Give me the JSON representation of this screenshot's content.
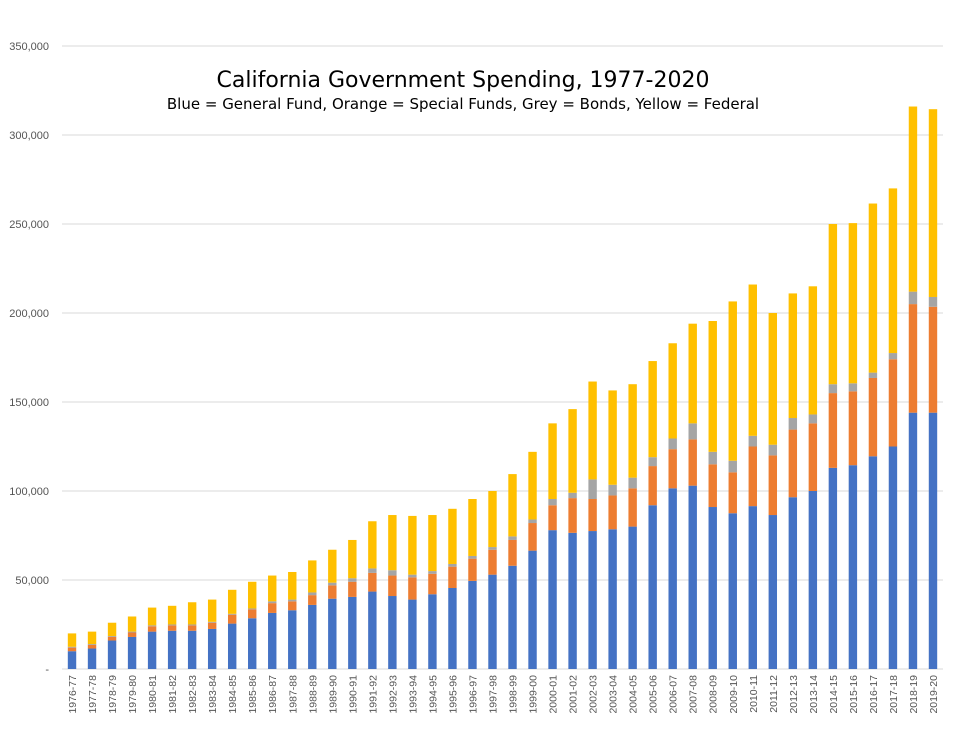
{
  "chart_data": {
    "type": "bar",
    "stacked": true,
    "title": "California Government Spending, 1977-2020",
    "subtitle": "Blue = General Fund, Orange = Special Funds, Grey = Bonds, Yellow = Federal",
    "xlabel": "",
    "ylabel": "",
    "ylim": [
      0,
      350000
    ],
    "grid": true,
    "legend": "none",
    "y_ticks": [
      "-",
      "50,000",
      "100,000",
      "150,000",
      "200,000",
      "250,000",
      "300,000",
      "350,000"
    ],
    "y_tick_values": [
      0,
      50000,
      100000,
      150000,
      200000,
      250000,
      300000,
      350000
    ],
    "categories": [
      "1976-77",
      "1977-78",
      "1978-79",
      "1979-80",
      "1980-81",
      "1981-82",
      "1982-83",
      "1983-84",
      "1984-85",
      "1985-86",
      "1986-87",
      "1987-88",
      "1988-89",
      "1989-90",
      "1990-91",
      "1991-92",
      "1992-93",
      "1993-94",
      "1994-95",
      "1995-96",
      "1996-97",
      "1997-98",
      "1998-99",
      "1999-00",
      "2000-01",
      "2001-02",
      "2002-03",
      "2003-04",
      "2004-05",
      "2005-06",
      "2006-07",
      "2007-08",
      "2008-09",
      "2009-10",
      "2010-11",
      "2011-12",
      "2012-13",
      "2013-14",
      "2014-15",
      "2015-16",
      "2016-17",
      "2017-18",
      "2018-19",
      "2019-20"
    ],
    "series": [
      {
        "name": "General Fund",
        "color": "#4472c4",
        "values": [
          10000,
          11500,
          16000,
          18000,
          21000,
          21500,
          21500,
          22500,
          25500,
          28500,
          31500,
          33000,
          36000,
          39500,
          40500,
          43500,
          41000,
          39000,
          42000,
          45500,
          49500,
          53000,
          58000,
          66500,
          78000,
          76500,
          77500,
          78500,
          80000,
          92000,
          101500,
          103000,
          91000,
          87500,
          91500,
          86500,
          96500,
          100000,
          113000,
          114500,
          119500,
          125000,
          144000,
          144000
        ]
      },
      {
        "name": "Special Funds",
        "color": "#ed7d31",
        "values": [
          2000,
          2000,
          2000,
          2500,
          3000,
          3000,
          3000,
          3500,
          5000,
          5000,
          5500,
          5000,
          5500,
          7500,
          8500,
          10500,
          11500,
          12500,
          11500,
          12000,
          12500,
          14000,
          14500,
          15500,
          14000,
          19500,
          18000,
          19000,
          21500,
          22000,
          22000,
          26000,
          24000,
          23000,
          33500,
          33500,
          38000,
          38000,
          42000,
          41500,
          44000,
          49000,
          61000,
          59500
        ]
      },
      {
        "name": "Bonds",
        "color": "#a5a5a5",
        "values": [
          500,
          500,
          500,
          500,
          500,
          500,
          500,
          500,
          500,
          500,
          1000,
          1000,
          1500,
          1500,
          2000,
          2500,
          3000,
          1500,
          1500,
          1500,
          1500,
          1500,
          2000,
          2000,
          3500,
          3000,
          11000,
          6000,
          6000,
          5000,
          6000,
          9000,
          7000,
          6500,
          6000,
          6000,
          6500,
          5000,
          5000,
          4500,
          3000,
          3500,
          7000,
          5500
        ]
      },
      {
        "name": "Federal",
        "color": "#ffc000",
        "values": [
          7500,
          7000,
          7500,
          8500,
          10000,
          10500,
          12500,
          12500,
          13500,
          15000,
          14500,
          15500,
          18000,
          18500,
          21500,
          26500,
          31000,
          33000,
          31500,
          31000,
          32000,
          31500,
          35000,
          38000,
          42500,
          47000,
          55000,
          53000,
          52500,
          54000,
          53500,
          56000,
          73500,
          89500,
          85000,
          74000,
          70000,
          72000,
          90000,
          90000,
          95000,
          92500,
          104000,
          105500
        ]
      }
    ]
  }
}
